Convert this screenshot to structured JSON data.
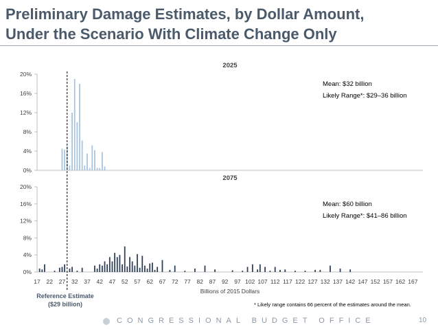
{
  "slide": {
    "title_line1": "Preliminary Damage Estimates, by Dollar Amount,",
    "title_line2": "Under the Scenario With Climate Change Only",
    "page_number": "10",
    "org_name": "CONGRESSIONAL BUDGET OFFICE"
  },
  "annotations": {
    "top_mean": "Mean: $32 billion",
    "top_range": "Likely Range*: $29–36 billion",
    "bottom_mean": "Mean: $60 billion",
    "bottom_range": "Likely Range*: $41–86 billion",
    "reference_line1": "Reference Estimate",
    "reference_line2": "($29 billion)",
    "footnote": "* Likely range contains 66 percent of the estimates around the mean."
  },
  "chart_data": [
    {
      "type": "bar",
      "title": "2025",
      "color": "#a9c4dc",
      "xlim": [
        17,
        171
      ],
      "ylim": [
        0,
        20
      ],
      "yticks": [
        "0%",
        "4%",
        "8%",
        "12%",
        "16%",
        "20%"
      ],
      "x": [
        27,
        28,
        29,
        30,
        31,
        32,
        33,
        34,
        35,
        36,
        37,
        38,
        39,
        40,
        41,
        42,
        43,
        44
      ],
      "values": [
        4.5,
        4.3,
        5,
        1,
        12,
        19,
        10,
        18,
        6.2,
        1,
        3.5,
        0.5,
        5.2,
        4.2,
        0.5,
        0.5,
        3.8,
        0.8
      ]
    },
    {
      "type": "bar",
      "title": "2075",
      "color": "#2f3f55",
      "xlabel": "Billions of 2015 Dollars",
      "xlim": [
        17,
        171
      ],
      "ylim": [
        0,
        20
      ],
      "yticks": [
        "0%",
        "4%",
        "8%",
        "12%",
        "16%",
        "20%"
      ],
      "xticks": [
        "17",
        "22",
        "27",
        "32",
        "37",
        "42",
        "47",
        "52",
        "57",
        "62",
        "67",
        "72",
        "77",
        "82",
        "87",
        "92",
        "97",
        "102",
        "107",
        "112",
        "117",
        "122",
        "127",
        "132",
        "137",
        "142",
        "147",
        "152",
        "157",
        "162",
        "167"
      ],
      "x": [
        18,
        19,
        20,
        24,
        26,
        27,
        28,
        30,
        31,
        33,
        35,
        40,
        41,
        42,
        43,
        44,
        45,
        46,
        47,
        48,
        49,
        50,
        51,
        52,
        53,
        54,
        55,
        56,
        57,
        58,
        59,
        60,
        61,
        62,
        63,
        64,
        65,
        67,
        70,
        72,
        76,
        80,
        84,
        88,
        95,
        99,
        101,
        103,
        105,
        106,
        108,
        110,
        112,
        114,
        116,
        120,
        124,
        128,
        130,
        134,
        138,
        142
      ],
      "values": [
        0.8,
        0.6,
        1.8,
        0.3,
        1,
        1.2,
        1.8,
        0.8,
        1.2,
        0.3,
        1,
        1.5,
        0.8,
        1.8,
        1.5,
        2.5,
        1.8,
        3.5,
        2.5,
        4.5,
        3.5,
        4,
        1.8,
        6,
        1.3,
        3.5,
        2.5,
        1.5,
        4.2,
        1,
        3.8,
        1.5,
        0.8,
        2,
        2.2,
        0.5,
        1.2,
        2.8,
        0.5,
        1.5,
        0.3,
        0.8,
        1.5,
        0.6,
        0.4,
        0.3,
        1.2,
        1.8,
        0.6,
        1.8,
        1.2,
        0.3,
        1.2,
        0.5,
        0.6,
        0.3,
        0.3,
        0.5,
        0.5,
        1.5,
        0.8,
        0.6
      ]
    }
  ]
}
